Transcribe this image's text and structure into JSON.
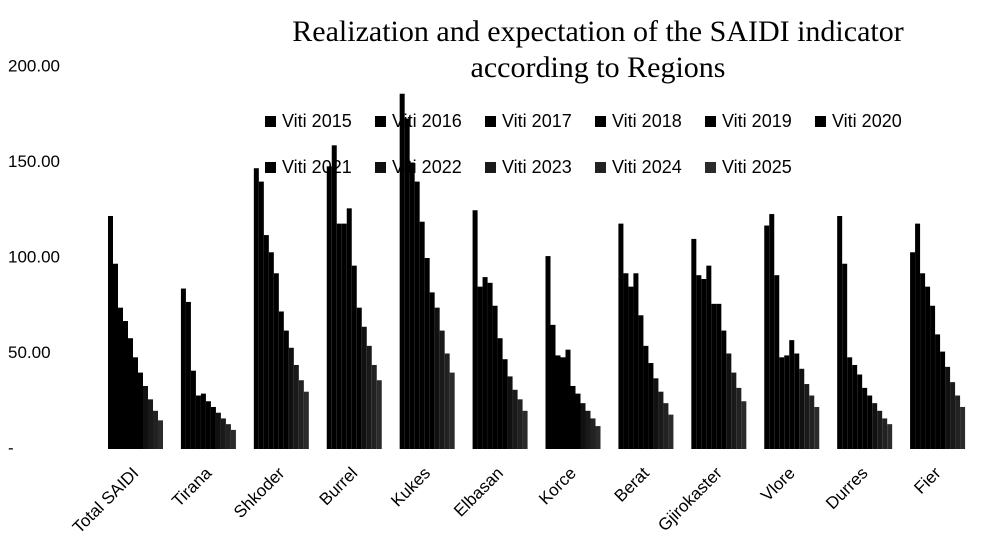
{
  "chart_data": {
    "type": "bar",
    "title": [
      "Realization and expectation of the SAIDI indicator",
      "according to Regions"
    ],
    "categories": [
      "Total SAIDI",
      "Tirana",
      "Shkoder",
      "Burrel",
      "Kukes",
      "Elbasan",
      "Korce",
      "Berat",
      "Gjirokaster",
      "Vlore",
      "Durres",
      "Fier"
    ],
    "series": [
      {
        "name": "Viti 2015",
        "color": "#000000",
        "values": [
          122,
          84,
          147,
          148,
          186,
          125,
          101,
          118,
          110,
          117,
          122,
          103
        ]
      },
      {
        "name": "Viti 2016",
        "color": "#000000",
        "values": [
          97,
          77,
          140,
          159,
          173,
          85,
          65,
          92,
          91,
          123,
          97,
          118
        ]
      },
      {
        "name": "Viti 2017",
        "color": "#000000",
        "values": [
          74,
          41,
          112,
          118,
          150,
          90,
          49,
          85,
          89,
          91,
          48,
          92
        ]
      },
      {
        "name": "Viti 2018",
        "color": "#000000",
        "values": [
          67,
          28,
          103,
          118,
          140,
          87,
          48,
          92,
          96,
          48,
          44,
          85
        ]
      },
      {
        "name": "Viti 2019",
        "color": "#000000",
        "values": [
          58,
          29,
          92,
          126,
          119,
          75,
          52,
          70,
          76,
          49,
          39,
          75
        ]
      },
      {
        "name": "Viti 2020",
        "color": "#000000",
        "values": [
          48,
          25,
          72,
          96,
          100,
          58,
          33,
          54,
          76,
          57,
          32,
          60
        ]
      },
      {
        "name": "Viti 2021",
        "color": "#000000",
        "values": [
          40,
          22,
          62,
          74,
          82,
          47,
          29,
          45,
          62,
          50,
          28,
          51
        ]
      },
      {
        "name": "Viti 2022",
        "color": "#111111",
        "values": [
          33,
          19,
          53,
          64,
          74,
          38,
          24,
          37,
          50,
          42,
          24,
          43
        ]
      },
      {
        "name": "Viti 2023",
        "color": "#1a1a1a",
        "values": [
          26,
          16,
          44,
          54,
          62,
          31,
          20,
          30,
          40,
          34,
          20,
          35
        ]
      },
      {
        "name": "Viti 2024",
        "color": "#222222",
        "values": [
          20,
          13,
          36,
          44,
          50,
          26,
          16,
          24,
          32,
          28,
          16,
          28
        ]
      },
      {
        "name": "Viti 2025",
        "color": "#2b2b2b",
        "values": [
          15,
          10,
          30,
          36,
          40,
          20,
          12,
          18,
          25,
          22,
          13,
          22
        ]
      }
    ],
    "ylim": [
      0,
      200
    ],
    "yticks": [
      {
        "value": 0,
        "label": "-"
      },
      {
        "value": 50,
        "label": "50.00"
      },
      {
        "value": 100,
        "label": "100.00"
      },
      {
        "value": 150,
        "label": "150.00"
      },
      {
        "value": 200,
        "label": "200.00"
      }
    ],
    "grid": false
  }
}
